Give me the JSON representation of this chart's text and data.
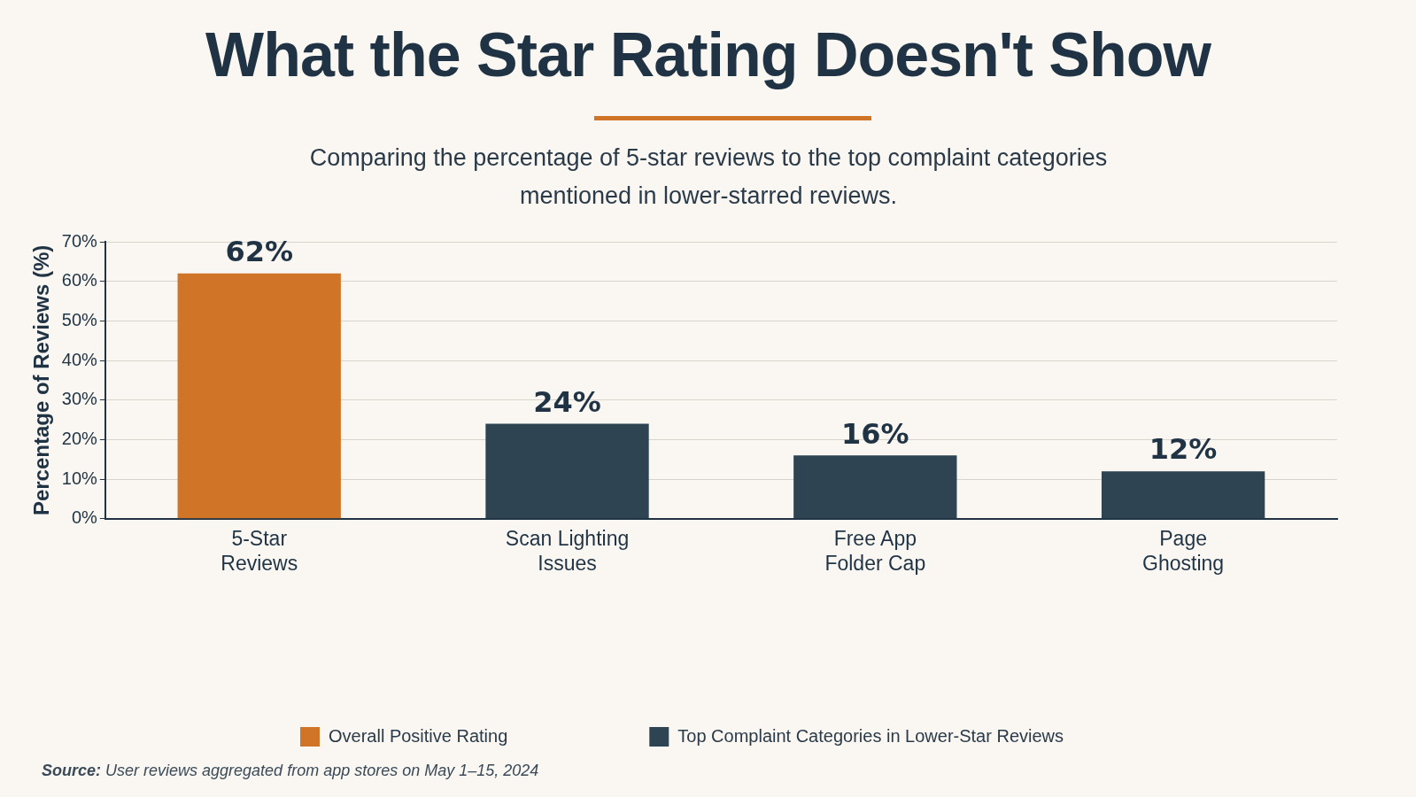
{
  "chart_data": {
    "type": "bar",
    "title": "What the Star Rating Doesn't Show",
    "subtitle": "Comparing the percentage of 5-star reviews to the top complaint categories mentioned in lower-starred reviews.",
    "ylabel": "Percentage of Reviews (%)",
    "categories": [
      "5-Star Reviews",
      "Scan Lighting Issues",
      "Free App Folder Cap",
      "Page Ghosting"
    ],
    "series": [
      {
        "name": "Overall Positive Rating",
        "color": "#d07428",
        "values": [
          62,
          null,
          null,
          null
        ],
        "value_labels": [
          "62%",
          null,
          null,
          null
        ]
      },
      {
        "name": "Top Complaint Categories in Lower-Star Reviews",
        "color": "#2e4452",
        "values": [
          null,
          24,
          16,
          12
        ],
        "value_labels": [
          null,
          "24%",
          "16%",
          "12%"
        ]
      }
    ],
    "ylim": [
      0,
      70
    ],
    "yticks": [
      {
        "value": 0,
        "label": "0%"
      },
      {
        "value": 10,
        "label": "10%"
      },
      {
        "value": 20,
        "label": "20%"
      },
      {
        "value": 30,
        "label": "30%"
      },
      {
        "value": 40,
        "label": "40%"
      },
      {
        "value": 50,
        "label": "50%"
      },
      {
        "value": 60,
        "label": "60%"
      },
      {
        "value": 70,
        "label": "70%"
      }
    ],
    "grid": "y",
    "legend": "bottom",
    "annotations": [
      "Source: User reviews aggregated from app stores on May 1–15, 2024"
    ]
  }
}
